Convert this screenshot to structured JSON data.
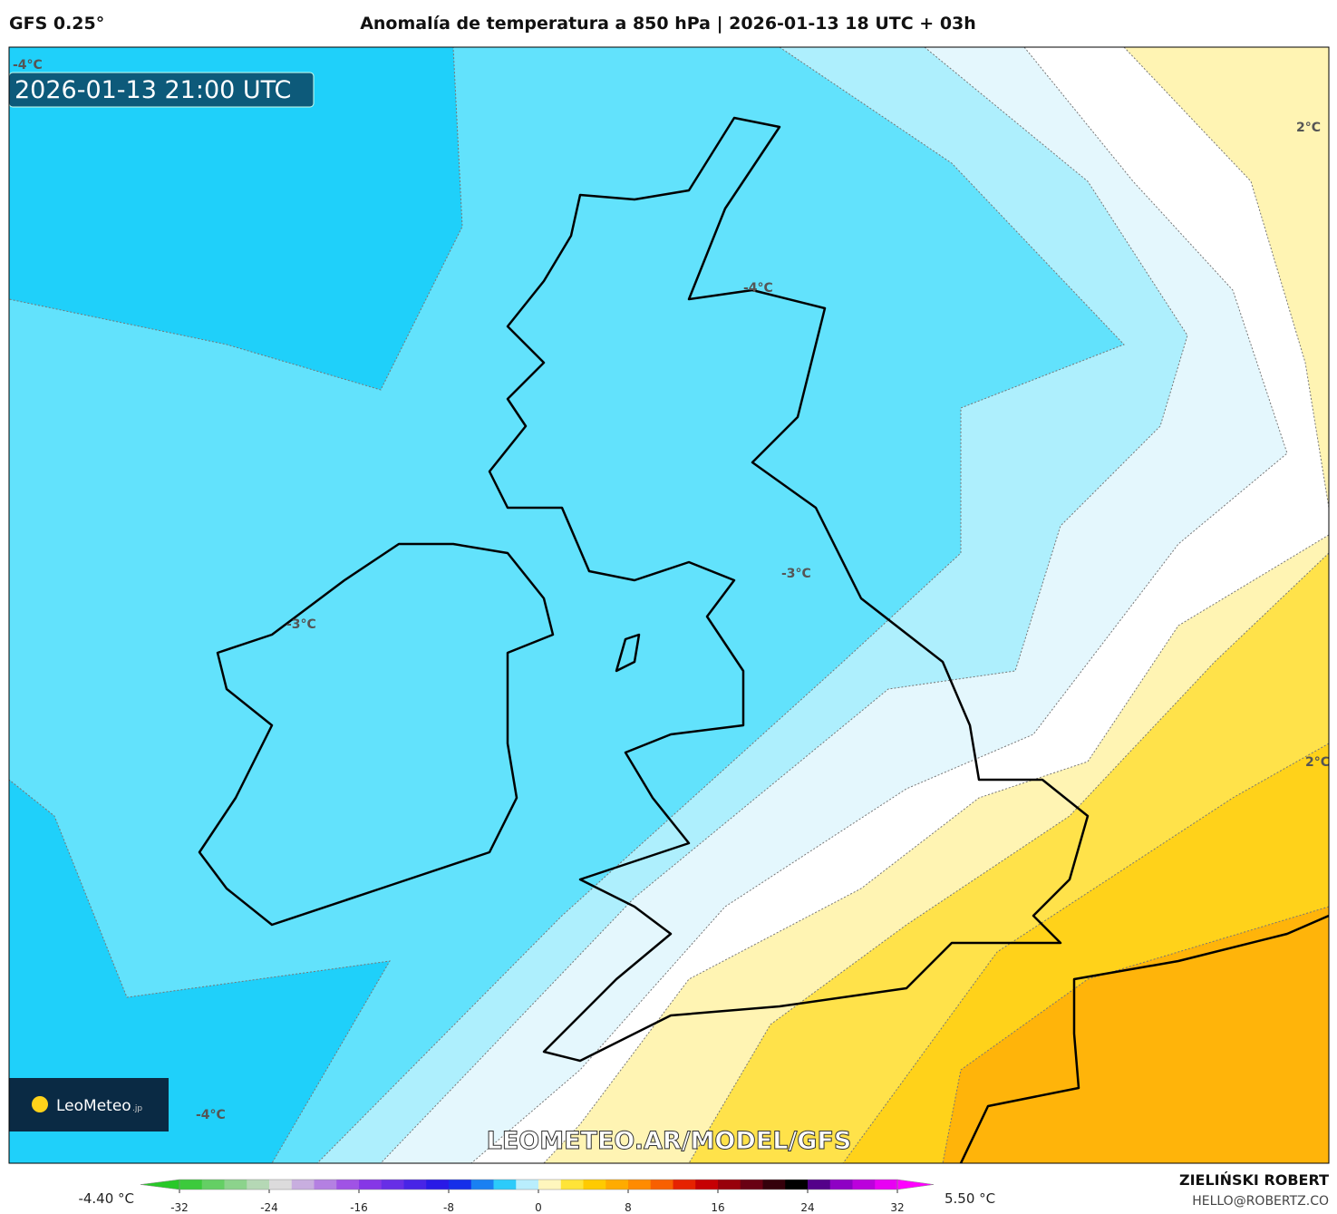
{
  "header": {
    "model": "GFS 0.25°",
    "title": "Anomalía de temperatura a 850 hPa | 2026-01-13 18 UTC + 03h"
  },
  "map": {
    "timestamp": "2026-01-13 21:00 UTC",
    "contour_labels": [
      "-4°C",
      "2°C",
      "-4°C",
      "-3°C",
      "-3°C",
      "-4°C",
      "2°C"
    ],
    "watermark": "LEOMETEO.AR/MODEL/GFS",
    "logo": {
      "name": "LeoMeteo",
      "suffix": ".jp"
    }
  },
  "colorbar": {
    "min_label": "-4.40 °C",
    "max_label": "5.50 °C",
    "range": [
      -32,
      32
    ],
    "ticks": [
      -32,
      -24,
      -16,
      -8,
      0,
      8,
      16,
      24,
      32
    ]
  },
  "footer": {
    "author": "ZIELIŃSKI ROBERT",
    "email": "HELLO@ROBERTZ.CO"
  }
}
